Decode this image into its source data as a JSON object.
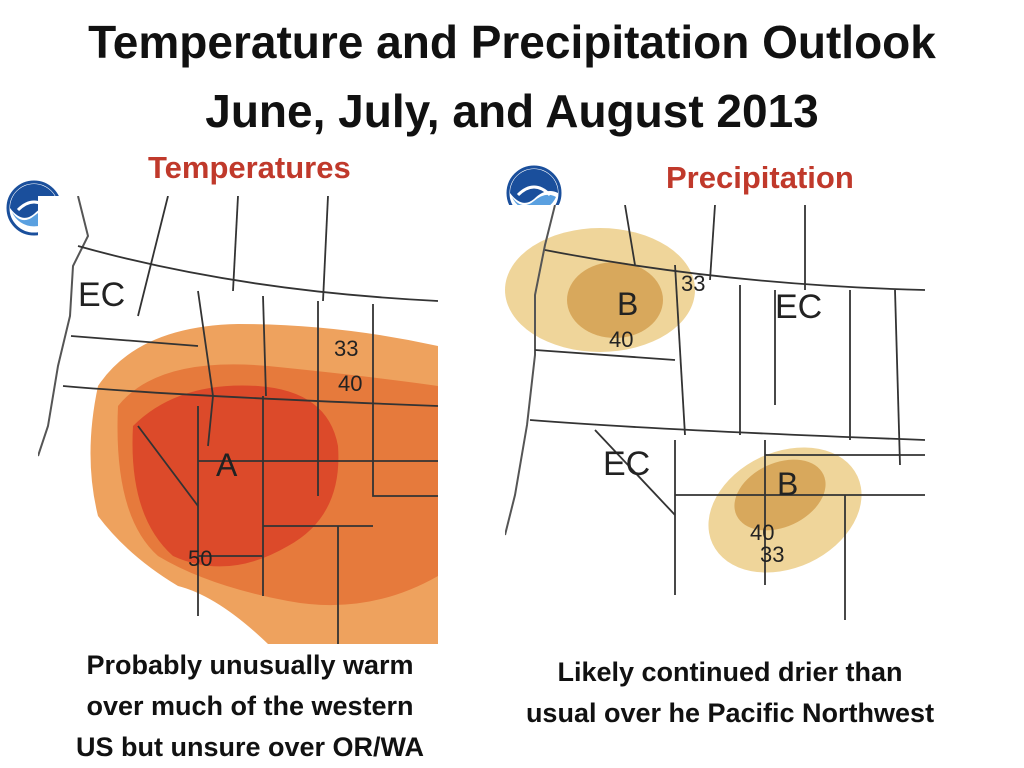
{
  "title_line1": "Temperature and Precipitation Outlook",
  "title_line2": "June, July, and August 2013",
  "logo_icon": "noaa-logo-icon",
  "temperature": {
    "heading": "Temperatures",
    "labels": {
      "ec": "EC",
      "a": "A",
      "c33": "33",
      "c40": "40",
      "c50": "50"
    },
    "caption_line1": "Probably unusually warm",
    "caption_line2": "over much of the western",
    "caption_line3": "US but unsure over OR/WA",
    "colors": {
      "above33": "#eea25e",
      "above40": "#e67a3c",
      "above50": "#dc4a2a"
    }
  },
  "precipitation": {
    "heading": "Precipitation",
    "labels": {
      "ec1": "EC",
      "ec2": "EC",
      "b1": "B",
      "b2": "B",
      "c33a": "33",
      "c40a": "40",
      "c40b": "40",
      "c33b": "33"
    },
    "caption_line1": "Likely continued drier than",
    "caption_line2": "usual over he Pacific Northwest",
    "colors": {
      "below33": "#efd59a",
      "below40": "#d8a85c"
    }
  }
}
